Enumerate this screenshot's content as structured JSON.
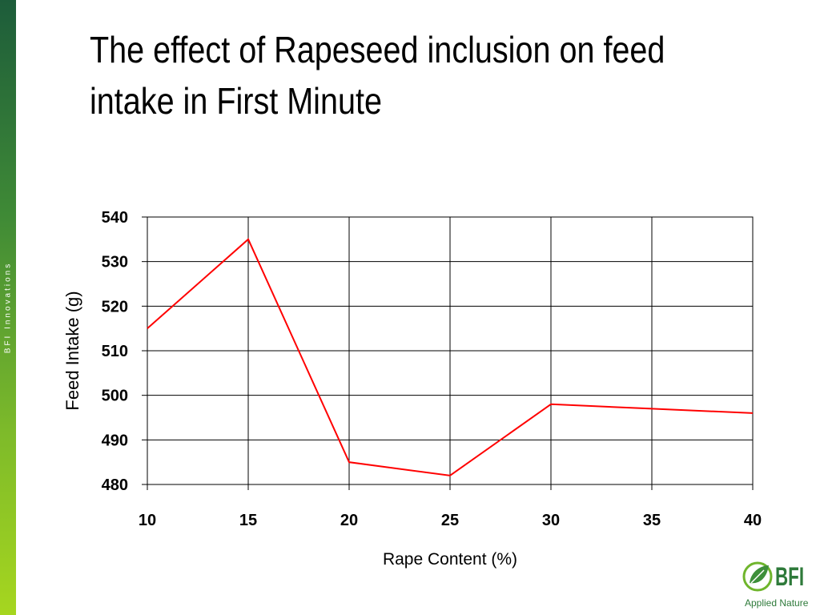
{
  "slide": {
    "title": "The effect of Rapeseed inclusion on feed intake in First Minute",
    "sidebar_text": "BFI Innovations",
    "logo_text": "BFI",
    "logo_subtitle": "Applied Nature"
  },
  "chart_data": {
    "type": "line",
    "x": [
      10,
      15,
      20,
      25,
      30,
      35,
      40
    ],
    "series": [
      {
        "values": [
          515,
          535,
          485,
          482,
          498,
          497,
          496
        ],
        "color": "#ff0000"
      }
    ],
    "xlabel": "Rape Content (%)",
    "ylabel": "Feed Intake (g)",
    "xlim": [
      10,
      40
    ],
    "ylim": [
      480,
      540
    ],
    "xticks": [
      10,
      15,
      20,
      25,
      30,
      35,
      40
    ],
    "yticks": [
      480,
      490,
      500,
      510,
      520,
      530,
      540
    ],
    "grid": true,
    "legend": "none"
  }
}
